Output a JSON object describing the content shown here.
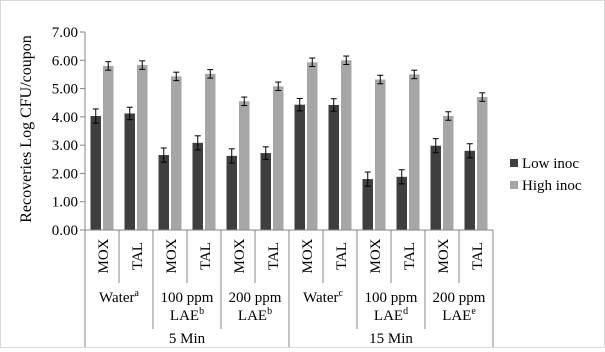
{
  "chart_data": {
    "type": "bar",
    "title": "",
    "ylabel": "Recoveries Log CFU/coupon",
    "ylim": [
      0,
      7
    ],
    "ytick_step": 1,
    "yticks": [
      "0.00",
      "1.00",
      "2.00",
      "3.00",
      "4.00",
      "5.00",
      "6.00",
      "7.00"
    ],
    "grid": false,
    "legend_position": "right",
    "categories": [
      {
        "coupon": "MOX",
        "treatment": "Water",
        "sup": "a",
        "time": "5 Min"
      },
      {
        "coupon": "TAL",
        "treatment": "Water",
        "sup": "a",
        "time": "5 Min"
      },
      {
        "coupon": "MOX",
        "treatment": "100 ppm LAE",
        "sup": "b",
        "time": "5 Min"
      },
      {
        "coupon": "TAL",
        "treatment": "100 ppm LAE",
        "sup": "b",
        "time": "5 Min"
      },
      {
        "coupon": "MOX",
        "treatment": "200 ppm LAE",
        "sup": "b",
        "time": "5 Min"
      },
      {
        "coupon": "TAL",
        "treatment": "200 ppm LAE",
        "sup": "b",
        "time": "5 Min"
      },
      {
        "coupon": "MOX",
        "treatment": "Water",
        "sup": "c",
        "time": "15 Min"
      },
      {
        "coupon": "TAL",
        "treatment": "Water",
        "sup": "c",
        "time": "15 Min"
      },
      {
        "coupon": "MOX",
        "treatment": "100 ppm LAE",
        "sup": "d",
        "time": "15 Min"
      },
      {
        "coupon": "TAL",
        "treatment": "100 ppm LAE",
        "sup": "d",
        "time": "15 Min"
      },
      {
        "coupon": "MOX",
        "treatment": "200 ppm LAE",
        "sup": "e",
        "time": "15 Min"
      },
      {
        "coupon": "TAL",
        "treatment": "200 ppm LAE",
        "sup": "e",
        "time": "15 Min"
      }
    ],
    "treatment_groups": [
      {
        "line1": "Water",
        "line2": "",
        "sup": "a"
      },
      {
        "line1": "100 ppm",
        "line2": "LAE",
        "sup": "b"
      },
      {
        "line1": "200 ppm",
        "line2": "LAE",
        "sup": "b"
      },
      {
        "line1": "Water",
        "line2": "",
        "sup": "c"
      },
      {
        "line1": "100 ppm",
        "line2": "LAE",
        "sup": "d"
      },
      {
        "line1": "200 ppm",
        "line2": "LAE",
        "sup": "e"
      }
    ],
    "time_groups": [
      "5 Min",
      "15 Min"
    ],
    "series": [
      {
        "name": "Low inoc",
        "color": "#3f3f3f",
        "values": [
          4.03,
          4.12,
          2.65,
          3.08,
          2.62,
          2.72,
          4.43,
          4.42,
          1.8,
          1.88,
          2.98,
          2.8
        ],
        "errors": [
          0.25,
          0.22,
          0.25,
          0.25,
          0.25,
          0.22,
          0.22,
          0.22,
          0.25,
          0.25,
          0.25,
          0.25
        ]
      },
      {
        "name": "High inoc",
        "color": "#a6a6a6",
        "values": [
          5.8,
          5.83,
          5.43,
          5.52,
          4.55,
          5.08,
          5.93,
          6.0,
          5.32,
          5.5,
          4.03,
          4.7
        ],
        "errors": [
          0.15,
          0.15,
          0.15,
          0.15,
          0.15,
          0.15,
          0.15,
          0.15,
          0.15,
          0.15,
          0.15,
          0.15
        ]
      }
    ]
  }
}
